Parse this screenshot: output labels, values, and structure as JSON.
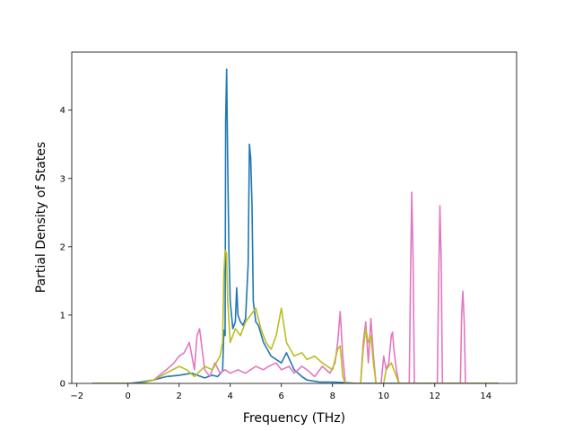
{
  "chart_data": {
    "type": "line",
    "title": "",
    "xlabel": "Frequency (THz)",
    "ylabel": "Partial Density of States",
    "xlim": [
      -2.2,
      15.2
    ],
    "ylim": [
      0,
      4.85
    ],
    "xticks": [
      -2,
      0,
      2,
      4,
      6,
      8,
      10,
      12,
      14
    ],
    "xtick_labels": [
      "−2",
      "0",
      "2",
      "4",
      "6",
      "8",
      "10",
      "12",
      "14"
    ],
    "yticks": [
      0,
      1,
      2,
      3,
      4
    ],
    "ytick_labels": [
      "0",
      "1",
      "2",
      "3",
      "4"
    ],
    "grid": false,
    "legend": "none",
    "series": [
      {
        "color": "#1f77b4",
        "points": [
          [
            -1.4,
            0
          ],
          [
            0.0,
            0
          ],
          [
            0.5,
            0.02
          ],
          [
            1.0,
            0.05
          ],
          [
            1.5,
            0.1
          ],
          [
            2.0,
            0.12
          ],
          [
            2.5,
            0.15
          ],
          [
            3.0,
            0.08
          ],
          [
            3.3,
            0.12
          ],
          [
            3.5,
            0.1
          ],
          [
            3.7,
            0.18
          ],
          [
            3.75,
            0.78
          ],
          [
            3.8,
            0.7
          ],
          [
            3.82,
            3.85
          ],
          [
            3.86,
            4.6
          ],
          [
            3.9,
            3.2
          ],
          [
            3.95,
            1.9
          ],
          [
            4.0,
            1.2
          ],
          [
            4.1,
            0.8
          ],
          [
            4.2,
            0.9
          ],
          [
            4.25,
            1.4
          ],
          [
            4.3,
            1.0
          ],
          [
            4.4,
            0.9
          ],
          [
            4.5,
            0.85
          ],
          [
            4.6,
            0.95
          ],
          [
            4.7,
            1.75
          ],
          [
            4.75,
            3.5
          ],
          [
            4.8,
            3.3
          ],
          [
            4.85,
            2.6
          ],
          [
            4.9,
            1.2
          ],
          [
            5.0,
            0.9
          ],
          [
            5.1,
            0.85
          ],
          [
            5.3,
            0.6
          ],
          [
            5.6,
            0.4
          ],
          [
            5.8,
            0.35
          ],
          [
            6.0,
            0.3
          ],
          [
            6.2,
            0.45
          ],
          [
            6.5,
            0.2
          ],
          [
            6.8,
            0.1
          ],
          [
            7.0,
            0.05
          ],
          [
            7.5,
            0.02
          ],
          [
            8.0,
            0.02
          ],
          [
            8.5,
            0.01
          ],
          [
            9.0,
            0
          ],
          [
            14.5,
            0
          ]
        ]
      },
      {
        "color": "#e377c2",
        "points": [
          [
            -1.4,
            0
          ],
          [
            0.5,
            0
          ],
          [
            1.0,
            0.05
          ],
          [
            1.5,
            0.2
          ],
          [
            1.8,
            0.3
          ],
          [
            2.0,
            0.4
          ],
          [
            2.2,
            0.45
          ],
          [
            2.4,
            0.6
          ],
          [
            2.5,
            0.4
          ],
          [
            2.6,
            0.2
          ],
          [
            2.7,
            0.7
          ],
          [
            2.8,
            0.8
          ],
          [
            2.9,
            0.5
          ],
          [
            3.0,
            0.2
          ],
          [
            3.2,
            0.1
          ],
          [
            3.4,
            0.3
          ],
          [
            3.6,
            0.15
          ],
          [
            3.8,
            0.2
          ],
          [
            4.0,
            0.15
          ],
          [
            4.3,
            0.2
          ],
          [
            4.6,
            0.15
          ],
          [
            5.0,
            0.25
          ],
          [
            5.3,
            0.2
          ],
          [
            5.5,
            0.25
          ],
          [
            5.8,
            0.3
          ],
          [
            6.0,
            0.2
          ],
          [
            6.3,
            0.25
          ],
          [
            6.5,
            0.15
          ],
          [
            6.8,
            0.25
          ],
          [
            7.0,
            0.2
          ],
          [
            7.3,
            0.1
          ],
          [
            7.6,
            0.25
          ],
          [
            7.9,
            0.15
          ],
          [
            8.1,
            0.3
          ],
          [
            8.2,
            0.6
          ],
          [
            8.3,
            1.05
          ],
          [
            8.4,
            0.4
          ],
          [
            8.5,
            0
          ],
          [
            9.1,
            0
          ],
          [
            9.2,
            0.6
          ],
          [
            9.3,
            0.9
          ],
          [
            9.4,
            0.3
          ],
          [
            9.5,
            0.95
          ],
          [
            9.6,
            0.4
          ],
          [
            9.7,
            0
          ],
          [
            9.9,
            0
          ],
          [
            10.0,
            0.4
          ],
          [
            10.1,
            0.2
          ],
          [
            10.2,
            0.3
          ],
          [
            10.3,
            0.7
          ],
          [
            10.35,
            0.75
          ],
          [
            10.4,
            0.5
          ],
          [
            10.5,
            0.2
          ],
          [
            10.6,
            0
          ],
          [
            11.0,
            0
          ],
          [
            11.05,
            1.5
          ],
          [
            11.1,
            2.8
          ],
          [
            11.15,
            1.8
          ],
          [
            11.2,
            0
          ],
          [
            12.1,
            0
          ],
          [
            12.15,
            1.5
          ],
          [
            12.2,
            2.6
          ],
          [
            12.25,
            1.8
          ],
          [
            12.3,
            0
          ],
          [
            13.0,
            0
          ],
          [
            13.05,
            1.0
          ],
          [
            13.1,
            1.35
          ],
          [
            13.15,
            0.9
          ],
          [
            13.2,
            0
          ],
          [
            14.5,
            0
          ]
        ]
      },
      {
        "color": "#bcbd22",
        "points": [
          [
            -1.4,
            0
          ],
          [
            0.5,
            0
          ],
          [
            1.0,
            0.05
          ],
          [
            1.5,
            0.15
          ],
          [
            2.0,
            0.25
          ],
          [
            2.3,
            0.2
          ],
          [
            2.6,
            0.1
          ],
          [
            3.0,
            0.25
          ],
          [
            3.3,
            0.2
          ],
          [
            3.6,
            0.4
          ],
          [
            3.7,
            0.6
          ],
          [
            3.75,
            1.6
          ],
          [
            3.8,
            1.95
          ],
          [
            3.85,
            1.9
          ],
          [
            3.9,
            1.2
          ],
          [
            4.0,
            0.6
          ],
          [
            4.2,
            0.8
          ],
          [
            4.4,
            0.7
          ],
          [
            4.6,
            0.9
          ],
          [
            4.8,
            1.0
          ],
          [
            5.0,
            1.1
          ],
          [
            5.2,
            0.8
          ],
          [
            5.4,
            0.6
          ],
          [
            5.6,
            0.5
          ],
          [
            5.8,
            0.7
          ],
          [
            6.0,
            1.1
          ],
          [
            6.2,
            0.6
          ],
          [
            6.5,
            0.4
          ],
          [
            6.8,
            0.45
          ],
          [
            7.0,
            0.35
          ],
          [
            7.3,
            0.4
          ],
          [
            7.6,
            0.3
          ],
          [
            8.0,
            0.2
          ],
          [
            8.2,
            0.5
          ],
          [
            8.3,
            0.55
          ],
          [
            8.4,
            0.1
          ],
          [
            8.5,
            0
          ],
          [
            9.1,
            0
          ],
          [
            9.2,
            0.5
          ],
          [
            9.3,
            0.8
          ],
          [
            9.4,
            0.6
          ],
          [
            9.5,
            0.7
          ],
          [
            9.6,
            0.3
          ],
          [
            9.7,
            0
          ],
          [
            10.0,
            0
          ],
          [
            10.1,
            0.2
          ],
          [
            10.3,
            0.3
          ],
          [
            10.5,
            0.1
          ],
          [
            10.6,
            0
          ],
          [
            14.5,
            0
          ]
        ]
      }
    ]
  }
}
